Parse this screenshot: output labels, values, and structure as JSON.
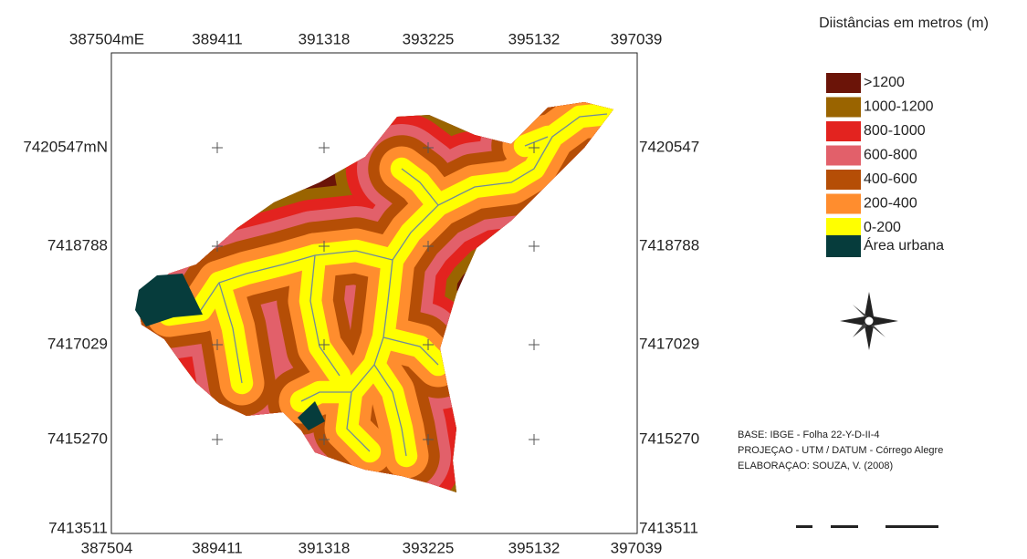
{
  "map": {
    "top_labels": [
      "387504mE",
      "389411",
      "391318",
      "393225",
      "395132",
      "397039"
    ],
    "bottom_labels": [
      "387504",
      "389411",
      "391318",
      "393225",
      "395132",
      "397039"
    ],
    "left_labels": [
      "7420547mN",
      "7418788",
      "7417029",
      "7415270",
      "7413511"
    ],
    "right_labels": [
      "7420547",
      "7418788",
      "7417029",
      "7415270",
      "7413511"
    ]
  },
  "legend": {
    "title": "Diistâncias em metros (m)",
    "items": [
      {
        "label": ">1200",
        "color": "#6b1408"
      },
      {
        "label": "1000-1200",
        "color": "#9a6400"
      },
      {
        "label": "800-1000",
        "color": "#e3231f"
      },
      {
        "label": "600-800",
        "color": "#e2606a"
      },
      {
        "label": "400-600",
        "color": "#b54e06"
      },
      {
        "label": "200-400",
        "color": "#ff8d2e"
      },
      {
        "label": "0-200",
        "color": "#ffff00"
      }
    ],
    "urban": {
      "label": "Área urbana",
      "color": "#063c3c"
    }
  },
  "credits": [
    "BASE: IBGE - Folha 22-Y-D-II-4",
    "PROJEÇAO - UTM / DATUM - Córrego Alegre",
    "ELABORAÇAO: SOUZA, V. (2008)"
  ]
}
